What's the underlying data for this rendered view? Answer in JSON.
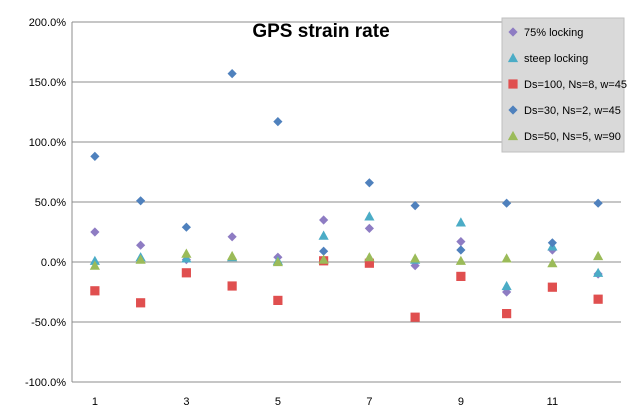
{
  "chart_data": {
    "type": "scatter",
    "title": "GPS strain rate",
    "xlabel": "",
    "ylabel": "",
    "x": [
      1,
      2,
      3,
      4,
      5,
      6,
      7,
      8,
      9,
      10,
      11,
      12
    ],
    "x_ticks": [
      "1",
      "3",
      "5",
      "7",
      "9",
      "11"
    ],
    "x_tick_values": [
      1,
      3,
      5,
      7,
      9,
      11
    ],
    "ylim": [
      -1.0,
      2.0
    ],
    "y_ticks": [
      "-100.0%",
      "-50.0%",
      "0.0%",
      "50.0%",
      "100.0%",
      "150.0%",
      "200.0%"
    ],
    "y_tick_values": [
      -1.0,
      -0.5,
      0.0,
      0.5,
      1.0,
      1.5,
      2.0
    ],
    "grid": "horizontal",
    "legend_position": "top-right",
    "series": [
      {
        "name": "75% locking",
        "marker": "diamond",
        "color": "#8e7cc3",
        "values": [
          0.25,
          0.14,
          0.02,
          0.21,
          0.04,
          0.35,
          0.28,
          -0.03,
          0.17,
          -0.25,
          0.1,
          -0.1
        ]
      },
      {
        "name": "steep locking",
        "marker": "triangle",
        "color": "#4bacc6",
        "values": [
          0.01,
          0.04,
          0.03,
          0.04,
          0.01,
          0.22,
          0.38,
          0.02,
          0.33,
          -0.2,
          0.13,
          -0.09
        ]
      },
      {
        "name": "Ds=100, Ns=8, w=45",
        "marker": "square",
        "color": "#e04f4f",
        "values": [
          -0.24,
          -0.34,
          -0.09,
          -0.2,
          -0.32,
          0.01,
          -0.01,
          -0.46,
          -0.12,
          -0.43,
          -0.21,
          -0.31
        ]
      },
      {
        "name": "Ds=30, Ns=2, w=45",
        "marker": "diamond",
        "color": "#4f81bd",
        "values": [
          0.88,
          0.51,
          0.29,
          1.57,
          1.17,
          0.09,
          0.66,
          0.47,
          0.1,
          0.49,
          0.16,
          0.49
        ]
      },
      {
        "name": "Ds=50, Ns=5, w=90",
        "marker": "triangle",
        "color": "#9bbb59",
        "values": [
          -0.03,
          0.02,
          0.07,
          0.05,
          0.0,
          0.02,
          0.04,
          0.03,
          0.01,
          0.03,
          -0.01,
          0.05
        ]
      }
    ]
  }
}
